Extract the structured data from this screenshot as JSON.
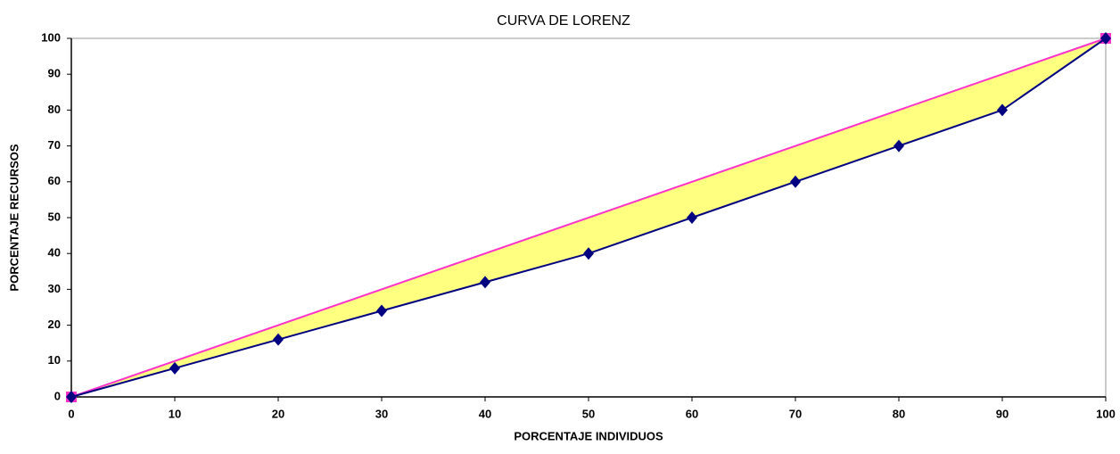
{
  "chart_data": {
    "type": "line",
    "title": "CURVA DE LORENZ",
    "xlabel": "PORCENTAJE INDIVIDUOS",
    "ylabel": "PORCENTAJE RECURSOS",
    "series": [
      {
        "x": [
          0,
          100
        ],
        "values": [
          0,
          100
        ],
        "color": "#ff33cc",
        "marker": "square"
      },
      {
        "x": [
          0,
          10,
          20,
          30,
          40,
          50,
          60,
          70,
          80,
          90,
          100
        ],
        "values": [
          0,
          8,
          16,
          24,
          32,
          40,
          50,
          60,
          70,
          80,
          100
        ],
        "color": "#000080",
        "marker": "diamond"
      }
    ],
    "fill_between_color": "#ffff80",
    "xlim": [
      0,
      100
    ],
    "xticks": [
      0,
      10,
      20,
      30,
      40,
      50,
      60,
      70,
      80,
      90,
      100
    ],
    "ylim": [
      0,
      100
    ],
    "yticks": [
      0,
      10,
      20,
      30,
      40,
      50,
      60,
      70,
      80,
      90,
      100
    ],
    "grid": false
  }
}
